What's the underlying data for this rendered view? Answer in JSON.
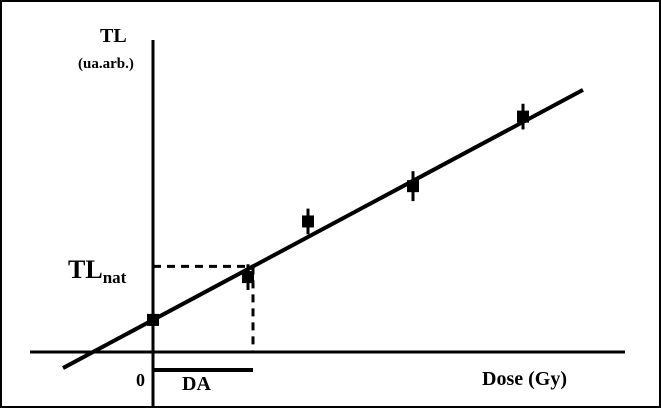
{
  "chart_data": {
    "type": "scatter",
    "ylabel": "TL",
    "ylabel_unit": "(ua.arb.)",
    "xlabel": "Dose (Gy)",
    "origin_label": "0",
    "series": [
      {
        "x": [
          0,
          0.95,
          1.55,
          2.6,
          3.7
        ],
        "y": [
          0.3,
          0.7,
          1.22,
          1.55,
          2.2
        ],
        "yerr": [
          0.08,
          0.12,
          0.12,
          0.14,
          0.12
        ]
      }
    ],
    "fit_line": {
      "x": [
        -0.9,
        4.3
      ],
      "y": [
        -0.15,
        2.45
      ]
    },
    "annotations": {
      "tl_nat": {
        "label_main": "TL",
        "label_sub": "nat",
        "y": 0.8,
        "x": 1.0
      },
      "da": {
        "label": "DA",
        "x_from": 0,
        "x_to": 1.0
      }
    },
    "xlim": [
      -1.5,
      4.7
    ],
    "ylim": [
      0,
      3.2
    ],
    "grid": false
  }
}
